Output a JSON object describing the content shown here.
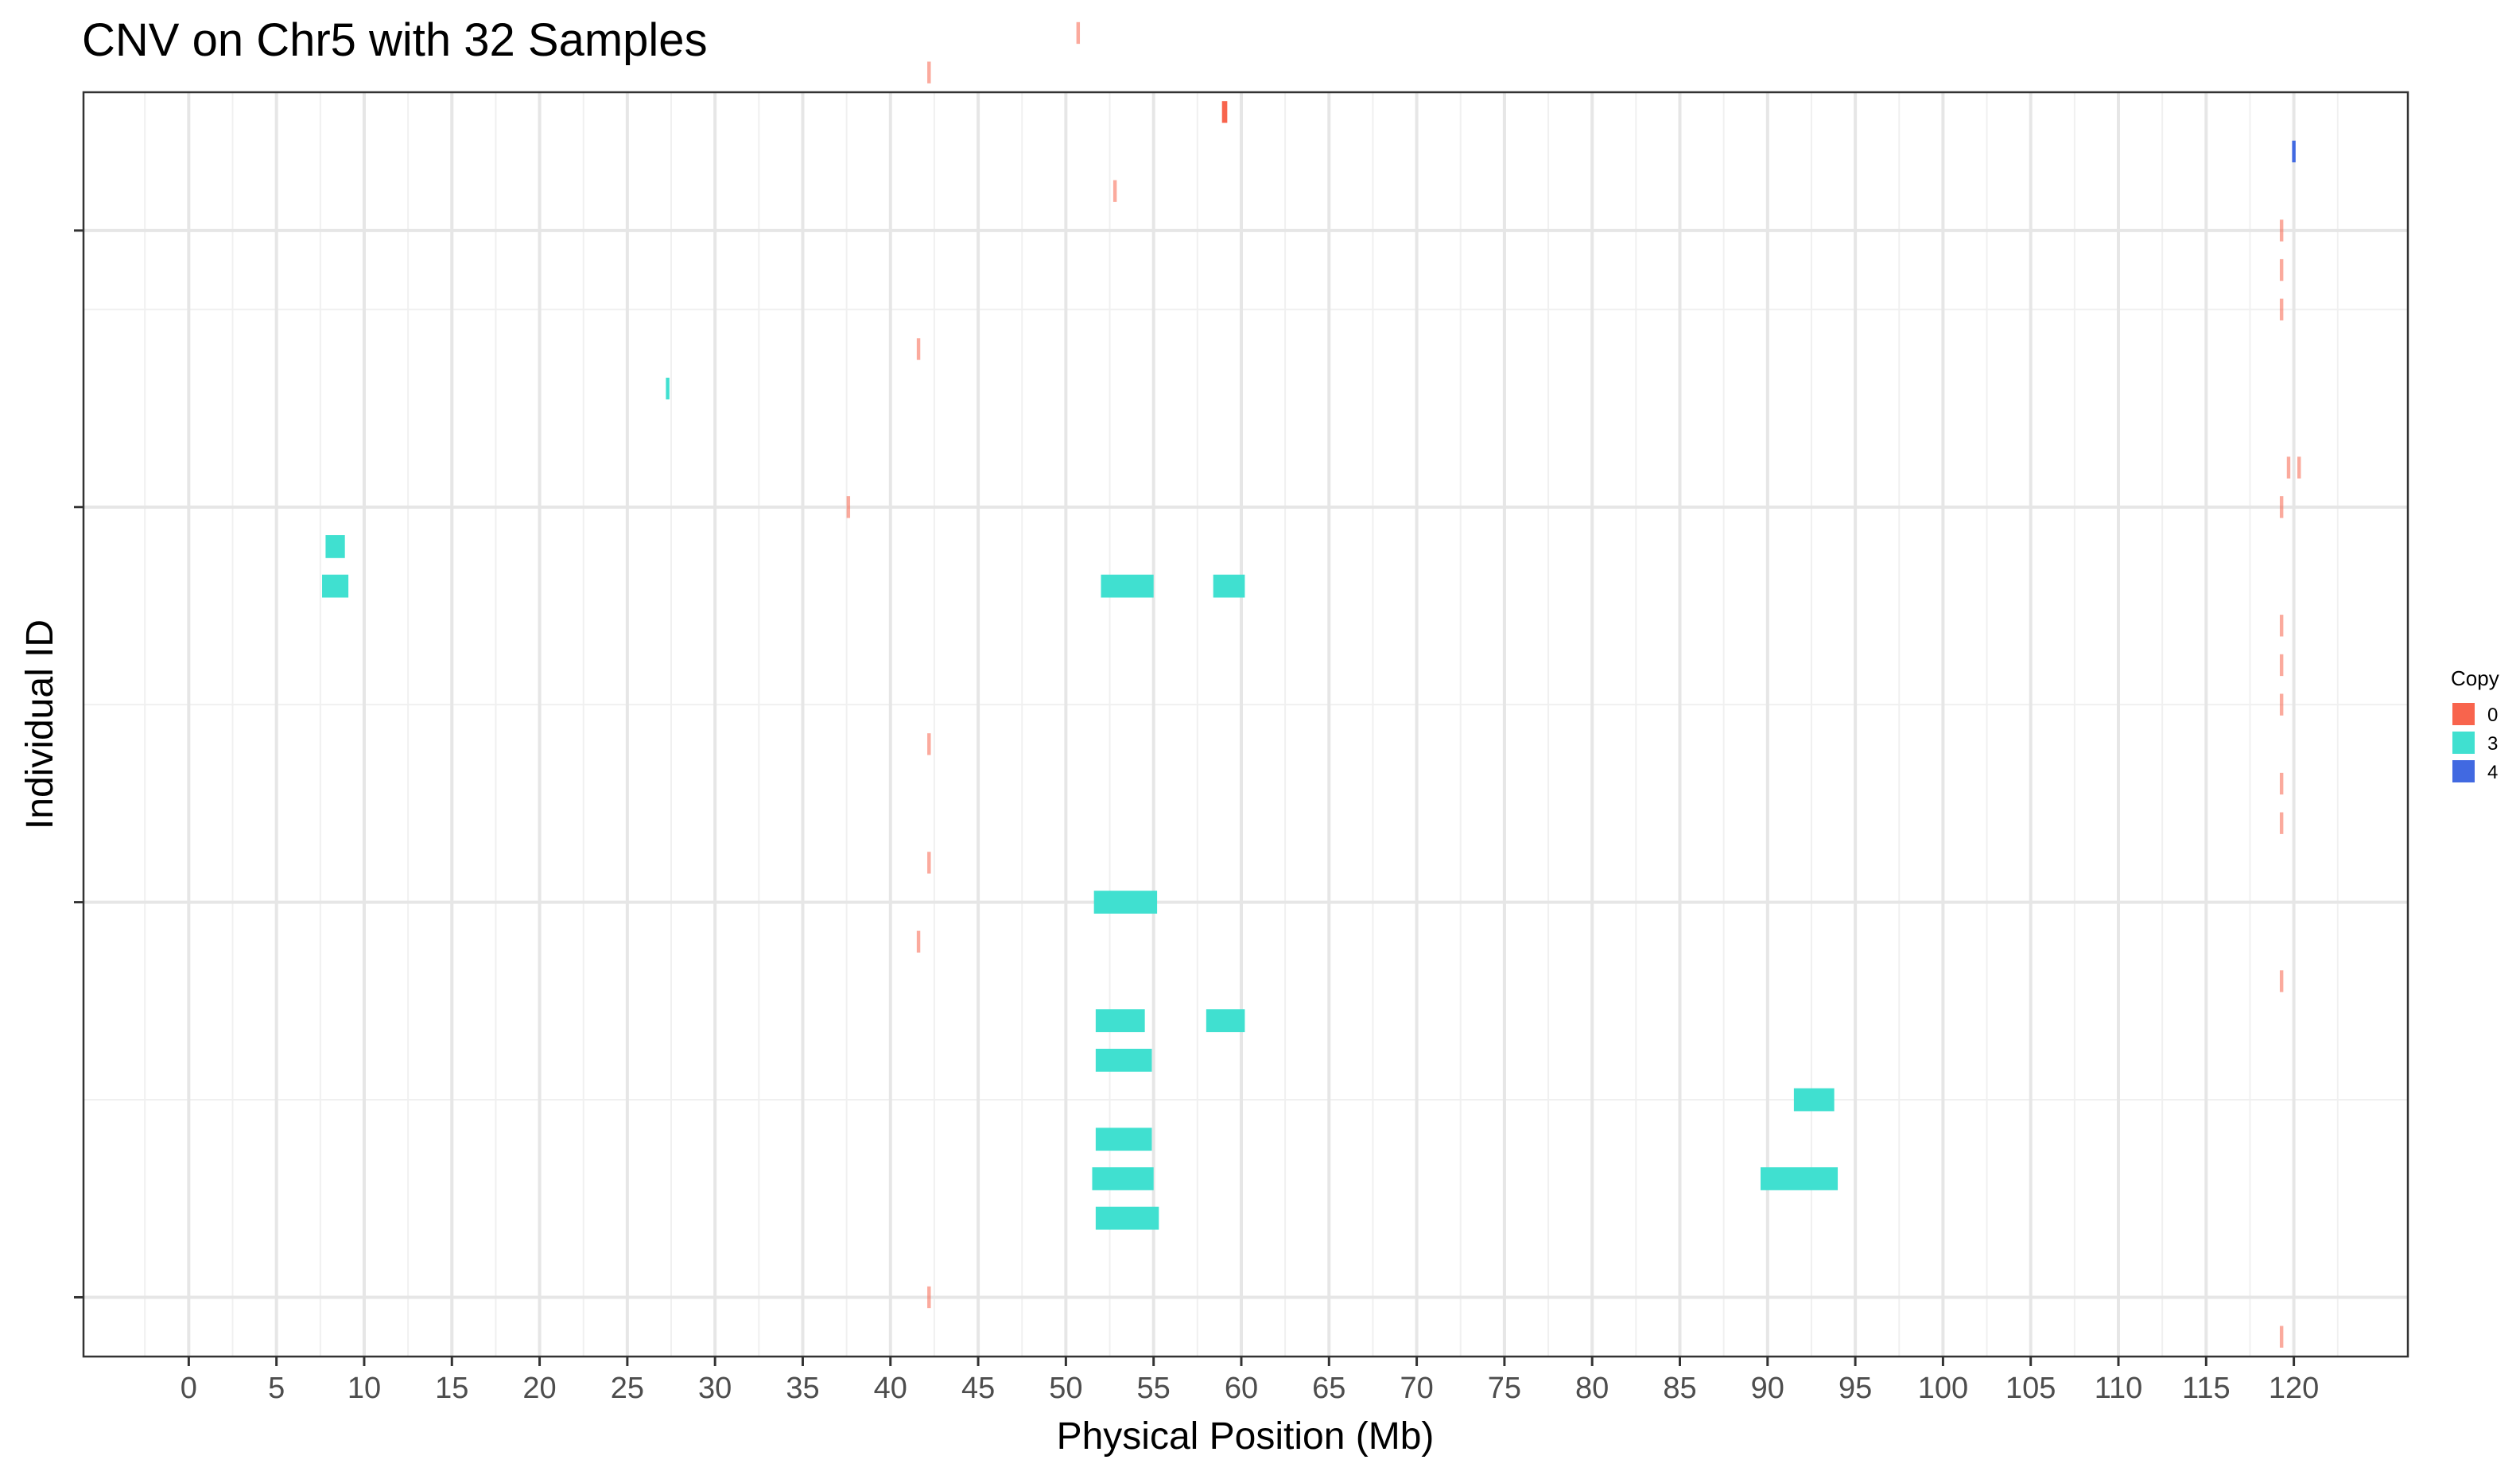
{
  "chart_data": {
    "type": "bar",
    "title": "CNV on Chr5 with 32 Samples",
    "xlabel": "Physical Position (Mb)",
    "ylabel": "Individual ID",
    "x_ticks": [
      0,
      5,
      10,
      15,
      20,
      25,
      30,
      35,
      40,
      45,
      50,
      55,
      60,
      65,
      70,
      75,
      80,
      85,
      90,
      95,
      100,
      105,
      110,
      115,
      120
    ],
    "x_tick_labels": [
      "0",
      "5",
      "10",
      "15",
      "20",
      "25",
      "30",
      "35",
      "40",
      "45",
      "50",
      "55",
      "60",
      "65",
      "70",
      "75",
      "80",
      "85",
      "90",
      "95",
      "100",
      "105",
      "110",
      "115",
      "120"
    ],
    "xlim": [
      -6.0,
      126.5
    ],
    "ylim": [
      0.5,
      32.5
    ],
    "y_ticks": [
      2,
      12,
      22,
      29
    ],
    "grid": true,
    "legend": {
      "title": "Copy",
      "position": "right",
      "entries": [
        {
          "label": "0",
          "color": "#F8644D"
        },
        {
          "label": "3",
          "color": "#40E0D0"
        },
        {
          "label": "4",
          "color": "#4169E1"
        }
      ]
    },
    "segments": [
      {
        "id": 1,
        "start": 119.2,
        "end": 119.4,
        "copy": "0"
      },
      {
        "id": 2,
        "start": 42.1,
        "end": 42.3,
        "copy": "0"
      },
      {
        "id": 4,
        "start": 51.7,
        "end": 55.3,
        "copy": "3"
      },
      {
        "id": 5,
        "start": 51.5,
        "end": 55.0,
        "copy": "3"
      },
      {
        "id": 5,
        "start": 89.6,
        "end": 94.0,
        "copy": "3"
      },
      {
        "id": 6,
        "start": 51.7,
        "end": 54.9,
        "copy": "3"
      },
      {
        "id": 7,
        "start": 91.5,
        "end": 93.8,
        "copy": "3"
      },
      {
        "id": 8,
        "start": 51.7,
        "end": 54.9,
        "copy": "3"
      },
      {
        "id": 9,
        "start": 51.7,
        "end": 54.5,
        "copy": "3"
      },
      {
        "id": 9,
        "start": 58.0,
        "end": 60.2,
        "copy": "3"
      },
      {
        "id": 10,
        "start": 119.2,
        "end": 119.4,
        "copy": "0"
      },
      {
        "id": 11,
        "start": 41.5,
        "end": 41.7,
        "copy": "0"
      },
      {
        "id": 12,
        "start": 51.6,
        "end": 55.2,
        "copy": "3"
      },
      {
        "id": 13,
        "start": 42.1,
        "end": 42.3,
        "copy": "0"
      },
      {
        "id": 14,
        "start": 119.2,
        "end": 119.4,
        "copy": "0"
      },
      {
        "id": 15,
        "start": 119.2,
        "end": 119.4,
        "copy": "0"
      },
      {
        "id": 16,
        "start": 42.1,
        "end": 42.3,
        "copy": "0"
      },
      {
        "id": 17,
        "start": 119.2,
        "end": 119.4,
        "copy": "0"
      },
      {
        "id": 18,
        "start": 119.2,
        "end": 119.4,
        "copy": "0"
      },
      {
        "id": 19,
        "start": 119.2,
        "end": 119.4,
        "copy": "0"
      },
      {
        "id": 20,
        "start": 7.6,
        "end": 9.1,
        "copy": "3"
      },
      {
        "id": 20,
        "start": 52.0,
        "end": 55.0,
        "copy": "3"
      },
      {
        "id": 20,
        "start": 58.4,
        "end": 60.2,
        "copy": "3"
      },
      {
        "id": 21,
        "start": 7.8,
        "end": 8.9,
        "copy": "3"
      },
      {
        "id": 22,
        "start": 37.5,
        "end": 37.7,
        "copy": "0"
      },
      {
        "id": 22,
        "start": 119.2,
        "end": 119.4,
        "copy": "0"
      },
      {
        "id": 23,
        "start": 119.6,
        "end": 119.8,
        "copy": "0"
      },
      {
        "id": 23,
        "start": 120.2,
        "end": 120.4,
        "copy": "0"
      },
      {
        "id": 25,
        "start": 27.2,
        "end": 27.4,
        "copy": "3"
      },
      {
        "id": 26,
        "start": 41.5,
        "end": 41.7,
        "copy": "0"
      },
      {
        "id": 27,
        "start": 119.2,
        "end": 119.4,
        "copy": "0"
      },
      {
        "id": 28,
        "start": 119.2,
        "end": 119.4,
        "copy": "0"
      },
      {
        "id": 29,
        "start": 119.2,
        "end": 119.4,
        "copy": "0"
      },
      {
        "id": 30,
        "start": 52.7,
        "end": 52.9,
        "copy": "0"
      },
      {
        "id": 31,
        "start": 119.9,
        "end": 120.1,
        "copy": "4"
      },
      {
        "id": 32,
        "start": 58.9,
        "end": 59.2,
        "copy": "0"
      },
      {
        "id": 33,
        "start": 42.1,
        "end": 42.3,
        "copy": "0"
      },
      {
        "id": 34,
        "start": 50.6,
        "end": 50.8,
        "copy": "0"
      }
    ]
  }
}
